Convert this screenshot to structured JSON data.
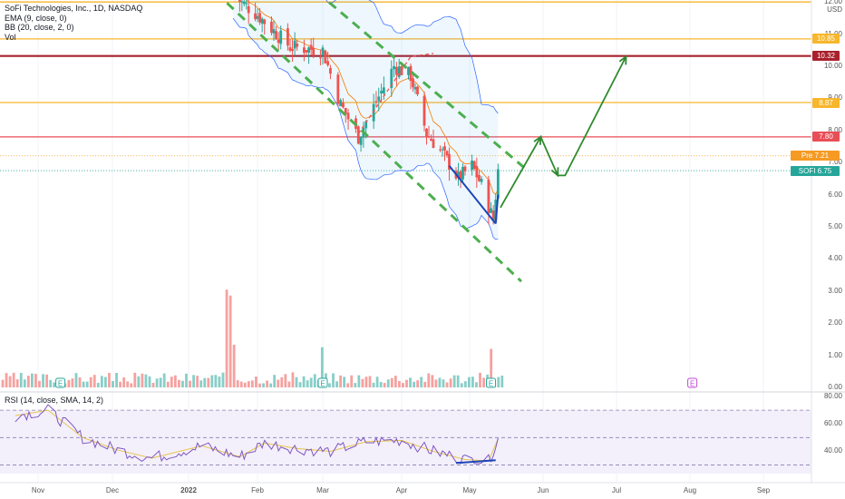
{
  "legend": {
    "title": "SoFi Technologies, Inc., 1D, NASDAQ",
    "ema": "EMA (9, close, 0)",
    "bb": "BB (20, close, 2, 0)",
    "vol": "Vol",
    "rsi": "RSI (14, close, SMA, 14, 2)"
  },
  "currency": "USD",
  "badges": [
    {
      "label": "10.85",
      "color": "#f7b62c",
      "price": 10.85
    },
    {
      "label": "10.32",
      "color": "#a8212d",
      "price": 10.32
    },
    {
      "label": "8.87",
      "color": "#f7b62c",
      "price": 8.87
    },
    {
      "label": "7.80",
      "color": "#e84e57",
      "price": 7.8
    },
    {
      "label": "Pre 7.21",
      "color": "#f59a23",
      "price": 7.21
    },
    {
      "label": "SOFI 6.75",
      "color": "#26a69a",
      "price": 6.75
    }
  ],
  "price_ticks": [
    "12.00",
    "11.00",
    "10.00",
    "9.00",
    "8.00",
    "7.00",
    "6.00",
    "5.00",
    "4.00",
    "3.00",
    "2.00",
    "1.00",
    "0.00"
  ],
  "rsi_ticks": [
    "80.00",
    "60.00",
    "40.00"
  ],
  "months": [
    "Nov",
    "Dec",
    "2022",
    "Feb",
    "Mar",
    "Apr",
    "May",
    "Jun",
    "Jul",
    "Aug",
    "Sep"
  ],
  "earnings_marker": "E",
  "chart_data": {
    "type": "candlestick",
    "symbol": "SOFI",
    "exchange": "NASDAQ",
    "interval": "1D",
    "currency": "USD",
    "price_range": [
      0,
      12.2
    ],
    "horizontal_levels": [
      {
        "price": 12.0,
        "color": "#f7b62c"
      },
      {
        "price": 10.85,
        "color": "#f7b62c"
      },
      {
        "price": 10.32,
        "color": "#a8212d"
      },
      {
        "price": 8.87,
        "color": "#f7b62c"
      },
      {
        "price": 7.8,
        "color": "#e84e57"
      }
    ],
    "last_price": 6.75,
    "premarket_price": 7.21,
    "price_path": [
      {
        "date": "2022-01-21",
        "close": 12.2
      },
      {
        "date": "2022-02-01",
        "close": 11.6
      },
      {
        "date": "2022-02-15",
        "close": 10.6
      },
      {
        "date": "2022-03-01",
        "close": 10.5
      },
      {
        "date": "2022-03-08",
        "close": 8.8
      },
      {
        "date": "2022-03-15",
        "close": 7.8
      },
      {
        "date": "2022-03-22",
        "close": 8.9
      },
      {
        "date": "2022-03-29",
        "close": 10.0
      },
      {
        "date": "2022-04-05",
        "close": 9.7
      },
      {
        "date": "2022-04-12",
        "close": 7.9
      },
      {
        "date": "2022-04-19",
        "close": 7.3
      },
      {
        "date": "2022-04-26",
        "close": 6.5
      },
      {
        "date": "2022-05-02",
        "close": 6.9
      },
      {
        "date": "2022-05-06",
        "close": 6.3
      },
      {
        "date": "2022-05-11",
        "close": 5.2
      },
      {
        "date": "2022-05-13",
        "close": 6.75
      }
    ],
    "volume_range": [
      0,
      1.0
    ],
    "rsi_range": [
      30,
      80
    ],
    "rsi_levels": [
      70,
      50,
      30
    ],
    "rsi_path": [
      {
        "date": "2021-10-22",
        "value": 66
      },
      {
        "date": "2021-11-05",
        "value": 70
      },
      {
        "date": "2021-11-19",
        "value": 50
      },
      {
        "date": "2021-12-03",
        "value": 41
      },
      {
        "date": "2021-12-17",
        "value": 35
      },
      {
        "date": "2022-01-07",
        "value": 44
      },
      {
        "date": "2022-01-24",
        "value": 36
      },
      {
        "date": "2022-02-04",
        "value": 46
      },
      {
        "date": "2022-02-18",
        "value": 42
      },
      {
        "date": "2022-03-04",
        "value": 40
      },
      {
        "date": "2022-03-18",
        "value": 47
      },
      {
        "date": "2022-04-01",
        "value": 48
      },
      {
        "date": "2022-04-15",
        "value": 40
      },
      {
        "date": "2022-04-29",
        "value": 34
      },
      {
        "date": "2022-05-09",
        "value": 33
      },
      {
        "date": "2022-05-13",
        "value": 49
      }
    ],
    "earnings_dates": [
      "2021-11-10",
      "2022-03-01",
      "2022-05-10",
      "2022-08-02"
    ],
    "projection_path": [
      {
        "date": "2022-05-14",
        "price": 5.6
      },
      {
        "date": "2022-05-31",
        "price": 7.8
      },
      {
        "date": "2022-06-07",
        "price": 6.6
      },
      {
        "date": "2022-06-10",
        "price": 6.6
      },
      {
        "date": "2022-07-05",
        "price": 10.3
      }
    ]
  }
}
